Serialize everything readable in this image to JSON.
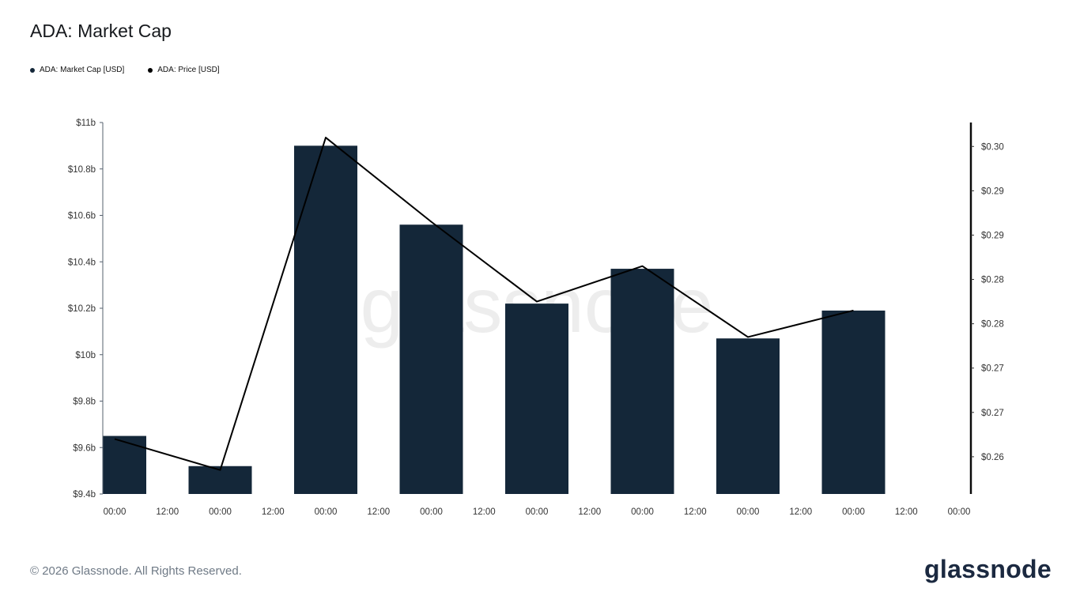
{
  "header": {
    "title": "ADA: Market Cap"
  },
  "legend": {
    "items": [
      {
        "label": "ADA: Market Cap [USD]",
        "color": "#142739"
      },
      {
        "label": "ADA: Price [USD]",
        "color": "#000000"
      }
    ]
  },
  "watermark": "glassnode",
  "footer": {
    "copyright": "© 2026 Glassnode. All Rights Reserved.",
    "brand": "glassnode"
  },
  "chart_data": {
    "type": "bar+line",
    "title": "ADA: Market Cap",
    "grid": false,
    "legend_position": "top-left",
    "x_tick_labels": [
      "00:00",
      "12:00",
      "00:00",
      "12:00",
      "00:00",
      "12:00",
      "00:00",
      "12:00",
      "00:00",
      "12:00",
      "00:00",
      "12:00",
      "00:00",
      "12:00",
      "00:00",
      "12:00",
      "00:00"
    ],
    "bar_series": {
      "name": "ADA: Market Cap [USD]",
      "color": "#142739",
      "tick_indices": [
        0,
        2,
        4,
        6,
        8,
        10,
        12,
        14
      ],
      "values_billions": [
        9.65,
        9.52,
        10.9,
        10.56,
        10.22,
        10.37,
        10.07,
        10.19
      ]
    },
    "line_series": {
      "name": "ADA: Price [USD]",
      "color": "#000000",
      "tick_indices": [
        0,
        2,
        4,
        6,
        8,
        10,
        12,
        14
      ],
      "values_usd": [
        0.262,
        0.2585,
        0.296,
        0.2865,
        0.2775,
        0.2815,
        0.2735,
        0.2765
      ]
    },
    "left_axis": {
      "min": 9.4,
      "max": 11,
      "ticks": [
        9.4,
        9.6,
        9.8,
        10,
        10.2,
        10.4,
        10.6,
        10.8,
        11
      ],
      "tick_labels": [
        "$9.4b",
        "$9.6b",
        "$9.8b",
        "$10b",
        "$10.2b",
        "$10.4b",
        "$10.6b",
        "$10.8b",
        "$11b"
      ]
    },
    "right_axis": {
      "min": 0.2558,
      "max": 0.2977,
      "ticks": [
        0.26,
        0.265,
        0.27,
        0.275,
        0.28,
        0.285,
        0.29,
        0.295
      ],
      "tick_labels": [
        "$0.26",
        "$0.27",
        "$0.27",
        "$0.28",
        "$0.28",
        "$0.29",
        "$0.29",
        "$0.30"
      ]
    }
  }
}
